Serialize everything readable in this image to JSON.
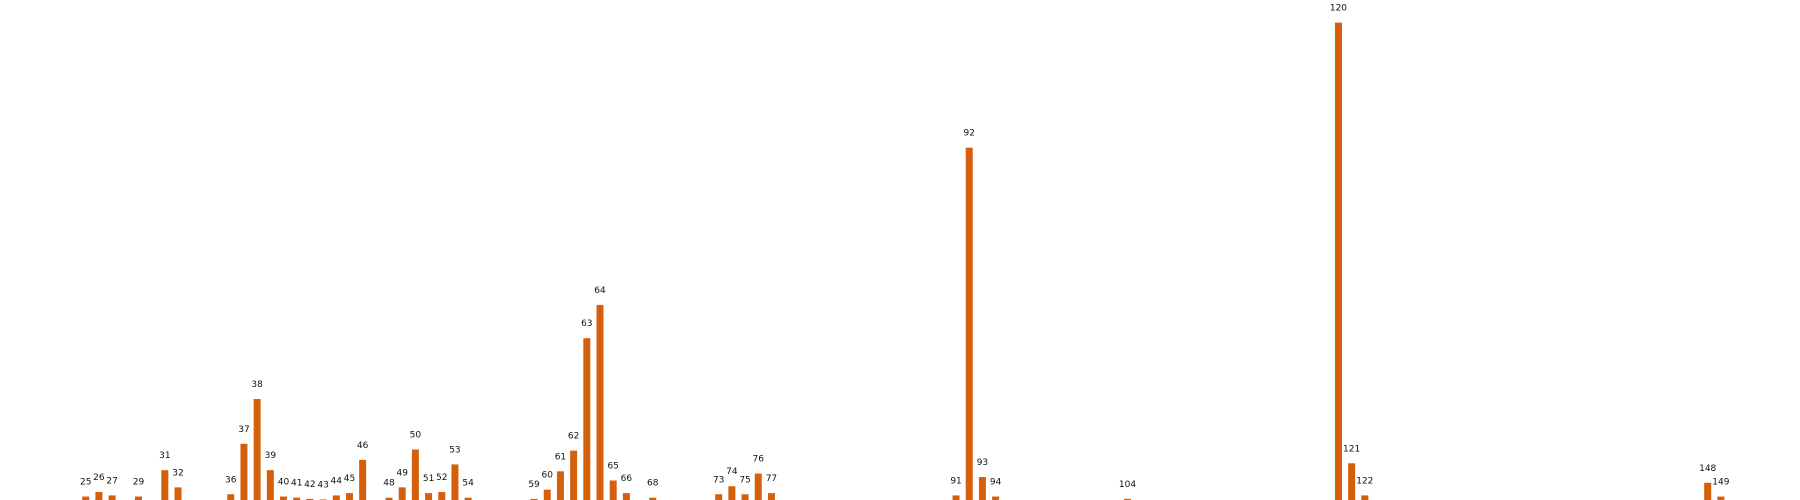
{
  "chart_data": {
    "type": "bar",
    "color": "#d4600c",
    "x": [
      25,
      26,
      27,
      29,
      31,
      32,
      36,
      37,
      38,
      39,
      40,
      41,
      42,
      43,
      44,
      45,
      46,
      48,
      49,
      50,
      51,
      52,
      53,
      54,
      59,
      60,
      61,
      62,
      63,
      64,
      65,
      66,
      68,
      73,
      74,
      75,
      76,
      77,
      91,
      92,
      93,
      94,
      104,
      120,
      121,
      122,
      148,
      149
    ],
    "values": [
      3,
      7,
      4,
      3,
      26,
      11,
      5,
      49,
      88,
      26,
      3,
      2,
      1,
      0.5,
      4,
      6,
      35,
      2,
      11,
      44,
      6,
      7,
      31,
      2,
      1,
      9,
      25,
      43,
      141,
      170,
      17,
      6,
      2,
      5,
      12,
      5,
      23,
      6,
      4,
      307,
      20,
      3,
      1,
      416,
      32,
      4,
      15,
      3
    ],
    "xlim": [
      18.5,
      155
    ],
    "ylim": [
      0,
      420
    ]
  }
}
